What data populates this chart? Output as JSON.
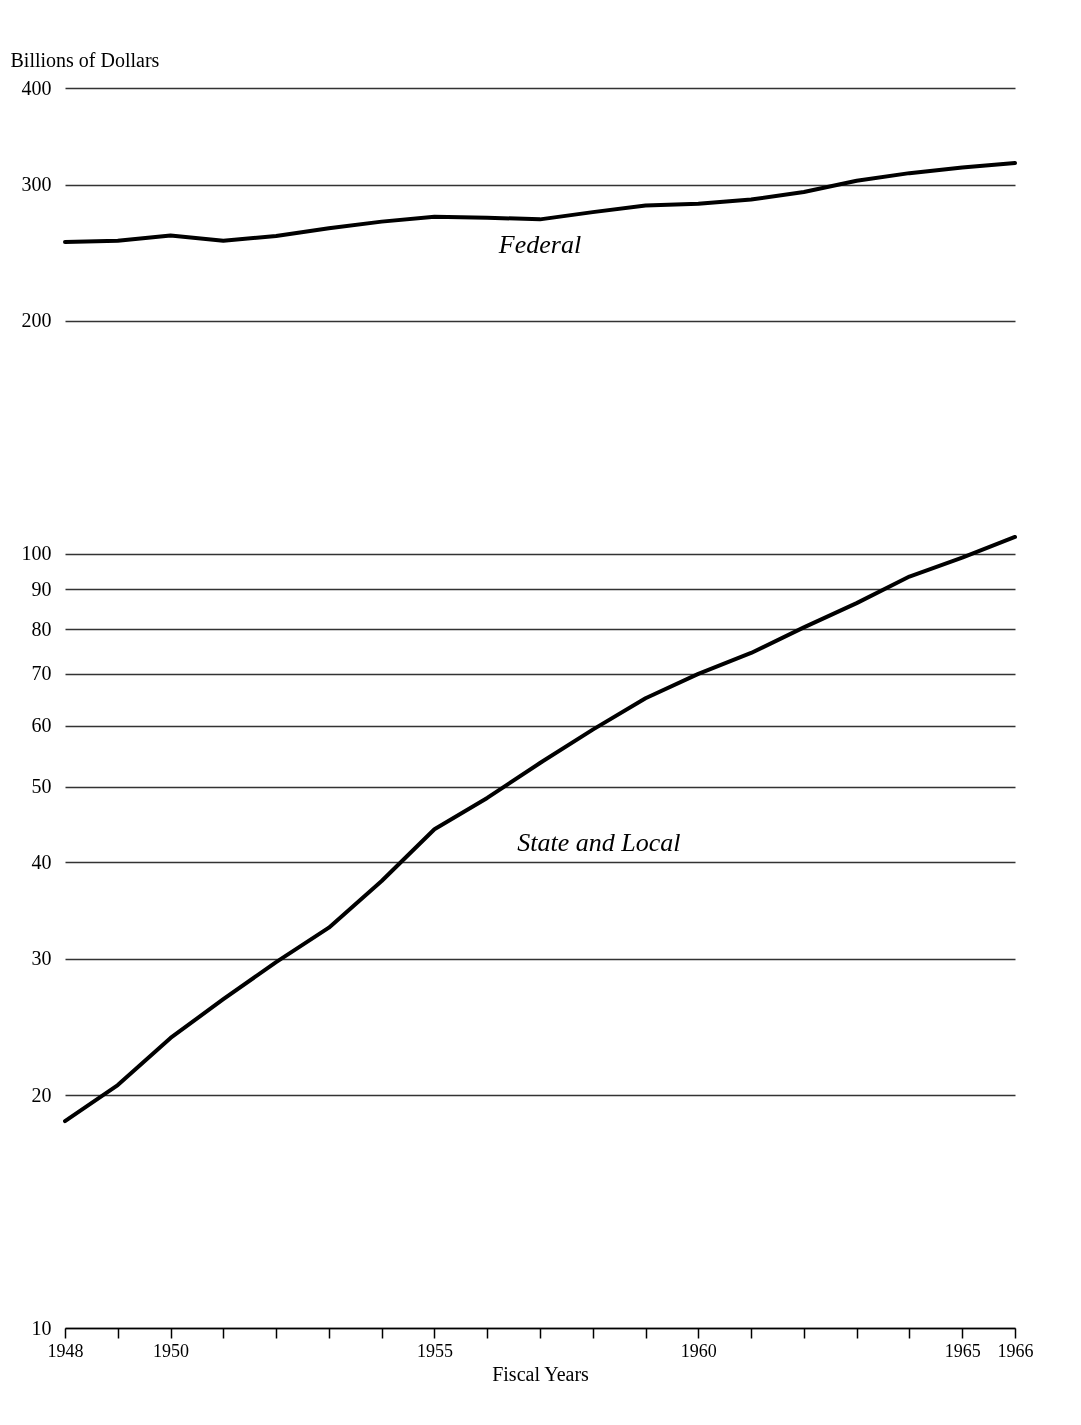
{
  "chart_data": {
    "type": "line",
    "ylabel": "Billions of Dollars",
    "xlabel": "Fiscal Years",
    "log": "y",
    "grid": "y",
    "x": [
      1948,
      1949,
      1950,
      1951,
      1952,
      1953,
      1954,
      1955,
      1956,
      1957,
      1958,
      1959,
      1960,
      1961,
      1962,
      1963,
      1964,
      1965,
      1966
    ],
    "xlim": [
      1948,
      1966
    ],
    "xticks": [
      1948,
      {
        "value": 1949,
        "label": null
      },
      1950,
      {
        "value": 1951,
        "label": null
      },
      {
        "value": 1952,
        "label": null
      },
      {
        "value": 1953,
        "label": null
      },
      {
        "value": 1954,
        "label": null
      },
      1955,
      {
        "value": 1956,
        "label": null
      },
      {
        "value": 1957,
        "label": null
      },
      {
        "value": 1958,
        "label": null
      },
      {
        "value": 1959,
        "label": null
      },
      1960,
      {
        "value": 1961,
        "label": null
      },
      {
        "value": 1962,
        "label": null
      },
      {
        "value": 1963,
        "label": null
      },
      {
        "value": 1964,
        "label": null
      },
      1965,
      1966
    ],
    "ylim": [
      10,
      400
    ],
    "yticks": [
      10,
      20,
      30,
      40,
      50,
      60,
      70,
      80,
      90,
      100,
      200,
      300,
      400
    ],
    "series": [
      {
        "name": "Federal",
        "color": "#000000",
        "values": [
          253,
          254,
          258,
          254,
          257.6,
          263.6,
          268.8,
          272.7,
          272,
          270.6,
          276.5,
          282,
          283.5,
          287,
          293.5,
          303.5,
          310.5,
          315.8,
          320
        ]
      },
      {
        "name": "State and Local",
        "color": "#000000",
        "values": [
          18.5,
          20.6,
          23.7,
          26.6,
          29.7,
          32.9,
          37.8,
          44.1,
          48.4,
          53.7,
          59.3,
          65.1,
          70,
          74.5,
          80.4,
          86.4,
          93.5,
          98.9,
          105.2
        ]
      }
    ]
  }
}
